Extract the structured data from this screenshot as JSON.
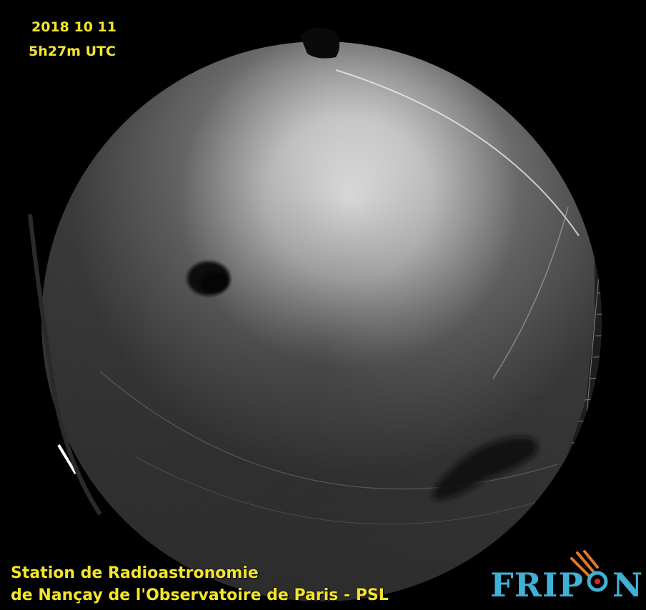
{
  "overlay": {
    "date": "2018 10 11",
    "time": "5h27m UTC",
    "station_line1": "Station de Radioastronomie",
    "station_line2": "de Nançay de l'Observatoire de Paris - PSL"
  },
  "logo": {
    "text_left": "FRIP",
    "text_right": "N",
    "text_color": "#3fb1d6",
    "meteor_color": "#e07a2a",
    "ring_color": "#3fb1d6"
  },
  "colors": {
    "overlay_text": "#f3e62b",
    "background": "#000000"
  }
}
